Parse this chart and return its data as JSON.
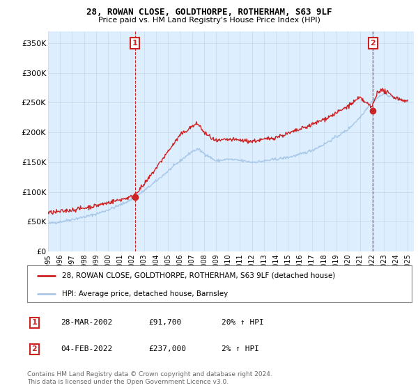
{
  "title_line1": "28, ROWAN CLOSE, GOLDTHORPE, ROTHERHAM, S63 9LF",
  "title_line2": "Price paid vs. HM Land Registry's House Price Index (HPI)",
  "ylabel_ticks": [
    "£0",
    "£50K",
    "£100K",
    "£150K",
    "£200K",
    "£250K",
    "£300K",
    "£350K"
  ],
  "ytick_values": [
    0,
    50000,
    100000,
    150000,
    200000,
    250000,
    300000,
    350000
  ],
  "ylim": [
    0,
    370000
  ],
  "xlim_start": 1995.0,
  "xlim_end": 2025.5,
  "hpi_color": "#a8c8e8",
  "price_color": "#cc2222",
  "plot_bg_color": "#ddeeff",
  "marker1_x": 2002.24,
  "marker1_y": 91700,
  "marker2_x": 2022.09,
  "marker2_y": 237000,
  "marker1_label": "1",
  "marker2_label": "2",
  "legend_line1": "28, ROWAN CLOSE, GOLDTHORPE, ROTHERHAM, S63 9LF (detached house)",
  "legend_line2": "HPI: Average price, detached house, Barnsley",
  "table_row1": [
    "1",
    "28-MAR-2002",
    "£91,700",
    "20% ↑ HPI"
  ],
  "table_row2": [
    "2",
    "04-FEB-2022",
    "£237,000",
    "2% ↑ HPI"
  ],
  "footer": "Contains HM Land Registry data © Crown copyright and database right 2024.\nThis data is licensed under the Open Government Licence v3.0.",
  "xtick_years": [
    1995,
    1996,
    1997,
    1998,
    1999,
    2000,
    2001,
    2002,
    2003,
    2004,
    2005,
    2006,
    2007,
    2008,
    2009,
    2010,
    2011,
    2012,
    2013,
    2014,
    2015,
    2016,
    2017,
    2018,
    2019,
    2020,
    2021,
    2022,
    2023,
    2024,
    2025
  ],
  "background_color": "#ffffff",
  "grid_color": "#c8d8e8"
}
